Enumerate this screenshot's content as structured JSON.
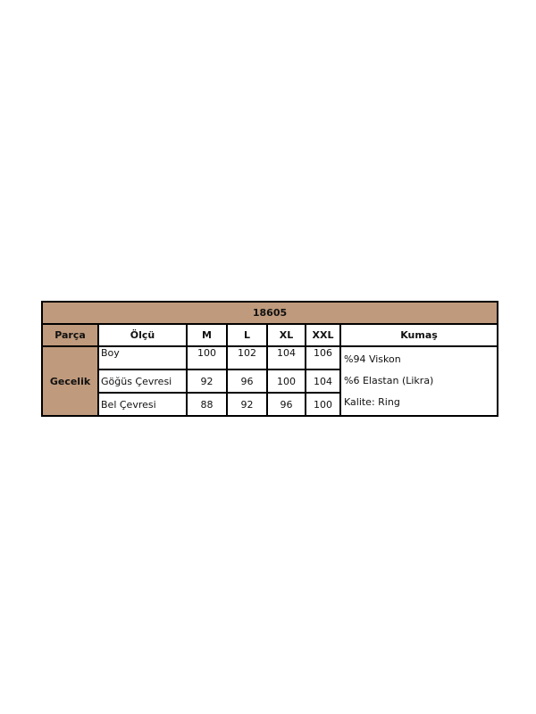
{
  "table": {
    "title": "18605",
    "headers": [
      "Parça",
      "Ölçü",
      "M",
      "L",
      "XL",
      "XXL",
      "Kumaş"
    ],
    "part": "Gecelik",
    "rows": [
      {
        "measure": "Boy",
        "values": [
          "100",
          "102",
          "104",
          "106"
        ]
      },
      {
        "measure": "Göğüs Çevresi",
        "values": [
          "92",
          "96",
          "100",
          "104"
        ]
      },
      {
        "measure": "Bel Çevresi",
        "values": [
          "88",
          "92",
          "96",
          "100"
        ]
      }
    ],
    "fabric": [
      "%94 Viskon",
      "%6 Elastan (Likra)",
      "Kalite: Ring"
    ]
  },
  "colors": {
    "header_fill": "#BF9A7C",
    "border": "#000000"
  }
}
